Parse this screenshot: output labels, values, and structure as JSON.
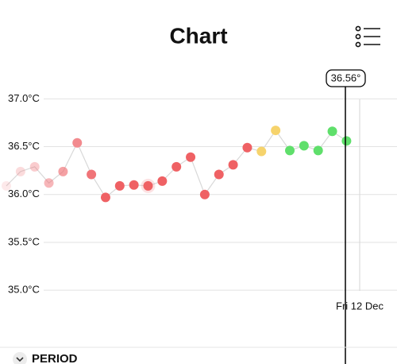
{
  "header": {
    "title": "Chart"
  },
  "chart_data": {
    "type": "line",
    "values": [
      36.09,
      36.24,
      36.29,
      36.12,
      36.24,
      36.54,
      36.21,
      35.97,
      36.09,
      36.1,
      36.09,
      36.14,
      36.29,
      36.39,
      36.0,
      36.21,
      36.31,
      36.49,
      36.45,
      36.67,
      36.46,
      36.51,
      36.46,
      36.66,
      36.56
    ],
    "point_colors": [
      "rgba(240,110,115,0.15)",
      "rgba(240,110,115,0.25)",
      "rgba(240,110,115,0.35)",
      "rgba(240,110,115,0.5)",
      "rgba(240,110,115,0.65)",
      "#f28a8e",
      "#f07478",
      "#ef6164",
      "#ef6164",
      "#ef6164",
      "#ef6164",
      "#ef6164",
      "#ef6164",
      "#ef6164",
      "#ef6164",
      "#ef6164",
      "#ef6164",
      "#ef6164",
      "#f6d36c",
      "#f6d36c",
      "#5fdf6b",
      "#5fdf6b",
      "#5fdf6b",
      "#5fdf6b",
      "#5fdf6b"
    ],
    "line_color": "#d8d8d8",
    "ylim": [
      34.935,
      37.31
    ],
    "yticks": [
      {
        "value": 37.0,
        "label": "37.0°C"
      },
      {
        "value": 36.5,
        "label": "36.5°C"
      },
      {
        "value": 36.0,
        "label": "36.0°C"
      },
      {
        "value": 35.5,
        "label": "35.5°C"
      },
      {
        "value": 35.0,
        "label": "35.0°C"
      }
    ],
    "grid": true,
    "cursor_label": "36.56°",
    "date_label": "Fri 12 Dec"
  },
  "footer": {
    "period": "PERIOD"
  }
}
